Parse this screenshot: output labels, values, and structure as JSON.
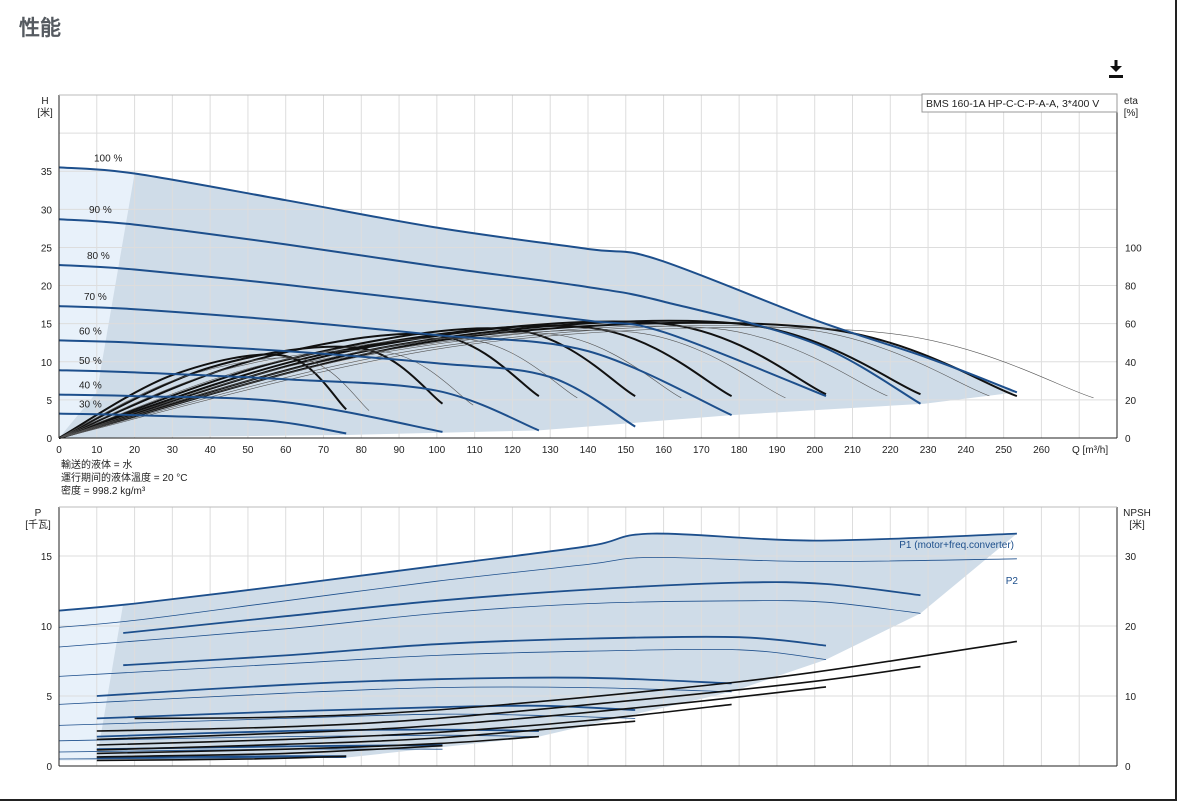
{
  "page": {
    "title": "性能",
    "download_icon": "download-icon"
  },
  "colors": {
    "region": "#cfdce8",
    "region_light": "#e8f1fa",
    "curve": "#1d4f8c",
    "black": "#111111",
    "grid": "#dddddd"
  },
  "chart_data": [
    {
      "type": "line",
      "title": "BMS 160-1A HP-C-C-P-A-A, 3*400 V",
      "xlabel": "Q [m³/h]",
      "ylabel": [
        "H",
        "[米]"
      ],
      "y2label": [
        "eta",
        "[%]"
      ],
      "xlim": [
        0,
        280
      ],
      "ylim": [
        0,
        45
      ],
      "y2lim": [
        0,
        180
      ],
      "xticks": [
        0,
        10,
        20,
        30,
        40,
        50,
        60,
        70,
        80,
        90,
        100,
        110,
        120,
        130,
        140,
        150,
        160,
        170,
        180,
        190,
        200,
        210,
        220,
        230,
        240,
        250,
        260
      ],
      "yticks": [
        0,
        5,
        10,
        15,
        20,
        25,
        30,
        35
      ],
      "y2ticks": [
        0,
        20,
        40,
        60,
        80,
        100
      ],
      "grid": true,
      "head_curves": [
        {
          "name": "100 %",
          "x": [
            0,
            20,
            60,
            100,
            140,
            158,
            200,
            230,
            253.5
          ],
          "y": [
            35.5,
            34.7,
            31.2,
            27.6,
            24.8,
            23.5,
            15.5,
            10.5,
            6.0
          ]
        },
        {
          "name": "90 %",
          "x": [
            0,
            20,
            60,
            100,
            140,
            160,
            200,
            228
          ],
          "y": [
            28.7,
            28.0,
            25.4,
            22.5,
            19.8,
            17.9,
            12.4,
            4.5
          ]
        },
        {
          "name": "80 %",
          "x": [
            0,
            20,
            60,
            100,
            140,
            160,
            203
          ],
          "y": [
            22.7,
            22.1,
            20.1,
            17.8,
            15.4,
            13.9,
            5.5
          ]
        },
        {
          "name": "70 %",
          "x": [
            0,
            20,
            60,
            100,
            140,
            178
          ],
          "y": [
            17.3,
            16.9,
            15.4,
            13.5,
            11.4,
            3.0
          ]
        },
        {
          "name": "60 %",
          "x": [
            0,
            20,
            60,
            100,
            130,
            152.5
          ],
          "y": [
            12.8,
            12.5,
            11.4,
            9.8,
            8.0,
            1.5
          ]
        },
        {
          "name": "50 %",
          "x": [
            0,
            20,
            60,
            100,
            127
          ],
          "y": [
            8.9,
            8.6,
            7.7,
            6.2,
            1.0
          ]
        },
        {
          "name": "40 %",
          "x": [
            0,
            20,
            60,
            101.5
          ],
          "y": [
            5.7,
            5.5,
            4.7,
            0.8
          ]
        },
        {
          "name": "30 %",
          "x": [
            0,
            20,
            55,
            76
          ],
          "y": [
            3.2,
            3.0,
            2.3,
            0.6
          ]
        }
      ],
      "efficiency_curves": [
        {
          "x": [
            0,
            30,
            60,
            76
          ],
          "y": [
            0,
            33,
            43,
            15
          ]
        },
        {
          "x": [
            0,
            40,
            80,
            101.5
          ],
          "y": [
            0,
            37,
            47,
            18
          ]
        },
        {
          "x": [
            0,
            50,
            100,
            127
          ],
          "y": [
            0,
            40,
            54,
            22
          ]
        },
        {
          "x": [
            0,
            60,
            120,
            152.5
          ],
          "y": [
            0,
            41,
            57,
            22
          ]
        },
        {
          "x": [
            0,
            70,
            140,
            178
          ],
          "y": [
            0,
            44,
            58,
            22
          ]
        },
        {
          "x": [
            0,
            80,
            160,
            203
          ],
          "y": [
            0,
            47,
            60,
            23
          ]
        },
        {
          "x": [
            0,
            90,
            180,
            228
          ],
          "y": [
            0,
            49,
            60,
            23
          ]
        },
        {
          "x": [
            0,
            100,
            200,
            253.5
          ],
          "y": [
            0,
            51,
            58,
            22
          ]
        }
      ],
      "annotations": [
        "輸送的液体 = 水",
        "運行期间的液体溫度 = 20 °C",
        "密度 = 998.2 kg/m³"
      ]
    },
    {
      "type": "line",
      "ylabel": [
        "P",
        "[千瓦]"
      ],
      "y2label": [
        "NPSH",
        "[米]"
      ],
      "xlim": [
        0,
        280
      ],
      "ylim": [
        0,
        18.5
      ],
      "y2lim": [
        0,
        37
      ],
      "yticks": [
        0,
        5,
        10,
        15
      ],
      "y2ticks": [
        0,
        10,
        20,
        30
      ],
      "grid": true,
      "series_labels": [
        "P1 (motor+freq.converter)",
        "P2"
      ],
      "p1_curves": [
        {
          "x": [
            0,
            20,
            60,
            100,
            140,
            157,
            200,
            253.5
          ],
          "y": [
            11.1,
            11.6,
            12.9,
            14.3,
            15.7,
            16.6,
            16.1,
            16.6
          ]
        },
        {
          "x": [
            17,
            60,
            100,
            140,
            180,
            203,
            228
          ],
          "y": [
            9.5,
            10.7,
            11.8,
            12.6,
            13.1,
            13.0,
            12.2
          ]
        },
        {
          "x": [
            17,
            60,
            100,
            140,
            180,
            203
          ],
          "y": [
            7.2,
            7.9,
            8.7,
            9.1,
            9.2,
            8.6
          ]
        },
        {
          "x": [
            10,
            60,
            100,
            140,
            178
          ],
          "y": [
            5.0,
            5.8,
            6.2,
            6.3,
            5.9
          ]
        },
        {
          "x": [
            10,
            60,
            100,
            128,
            152.5
          ],
          "y": [
            3.4,
            3.9,
            4.2,
            4.3,
            4.0
          ]
        },
        {
          "x": [
            10,
            60,
            100,
            127
          ],
          "y": [
            2.1,
            2.5,
            2.6,
            2.5
          ]
        },
        {
          "x": [
            10,
            60,
            101.5
          ],
          "y": [
            1.2,
            1.4,
            1.5
          ]
        },
        {
          "x": [
            10,
            60,
            76
          ],
          "y": [
            0.6,
            0.7,
            0.7
          ]
        }
      ],
      "p2_curves": [
        {
          "x": [
            0,
            20,
            60,
            100,
            140,
            157,
            200,
            253.5
          ],
          "y": [
            9.9,
            10.4,
            11.8,
            13.2,
            14.4,
            14.9,
            14.6,
            14.8
          ]
        },
        {
          "x": [
            0,
            60,
            100,
            140,
            180,
            203,
            228
          ],
          "y": [
            8.5,
            9.8,
            10.9,
            11.6,
            11.8,
            11.7,
            10.9
          ]
        },
        {
          "x": [
            0,
            60,
            100,
            140,
            180,
            203
          ],
          "y": [
            6.4,
            7.3,
            7.9,
            8.2,
            8.3,
            7.6
          ]
        },
        {
          "x": [
            0,
            60,
            100,
            140,
            178
          ],
          "y": [
            4.4,
            5.2,
            5.6,
            5.6,
            5.3
          ]
        },
        {
          "x": [
            0,
            60,
            100,
            128,
            152.5
          ],
          "y": [
            2.9,
            3.4,
            3.7,
            3.6,
            3.4
          ]
        },
        {
          "x": [
            0,
            60,
            100,
            127
          ],
          "y": [
            1.8,
            2.1,
            2.2,
            2.1
          ]
        },
        {
          "x": [
            0,
            60,
            101.5
          ],
          "y": [
            1.0,
            1.2,
            1.2
          ]
        },
        {
          "x": [
            0,
            60,
            76
          ],
          "y": [
            0.5,
            0.6,
            0.6
          ]
        }
      ],
      "npsh_curves": [
        {
          "x": [
            20,
            60,
            100,
            160,
            200,
            253.5
          ],
          "y": [
            6.8,
            7.0,
            8.0,
            10.9,
            13.4,
            17.8
          ]
        },
        {
          "x": [
            10,
            60,
            100,
            160,
            200,
            228
          ],
          "y": [
            5.0,
            5.6,
            6.8,
            9.8,
            12.1,
            14.2
          ]
        },
        {
          "x": [
            10,
            60,
            100,
            160,
            203
          ],
          "y": [
            3.8,
            4.7,
            5.8,
            8.7,
            11.3
          ]
        },
        {
          "x": [
            10,
            60,
            100,
            140,
            178
          ],
          "y": [
            3.0,
            3.8,
            4.8,
            6.5,
            8.8
          ]
        },
        {
          "x": [
            10,
            60,
            100,
            152.5
          ],
          "y": [
            2.3,
            3.1,
            4.0,
            6.4
          ]
        },
        {
          "x": [
            10,
            60,
            100,
            127
          ],
          "y": [
            1.8,
            2.4,
            3.2,
            4.2
          ]
        },
        {
          "x": [
            10,
            60,
            101.5
          ],
          "y": [
            1.3,
            1.8,
            2.9
          ]
        },
        {
          "x": [
            10,
            50,
            76
          ],
          "y": [
            0.8,
            1.0,
            1.4
          ]
        }
      ]
    }
  ]
}
